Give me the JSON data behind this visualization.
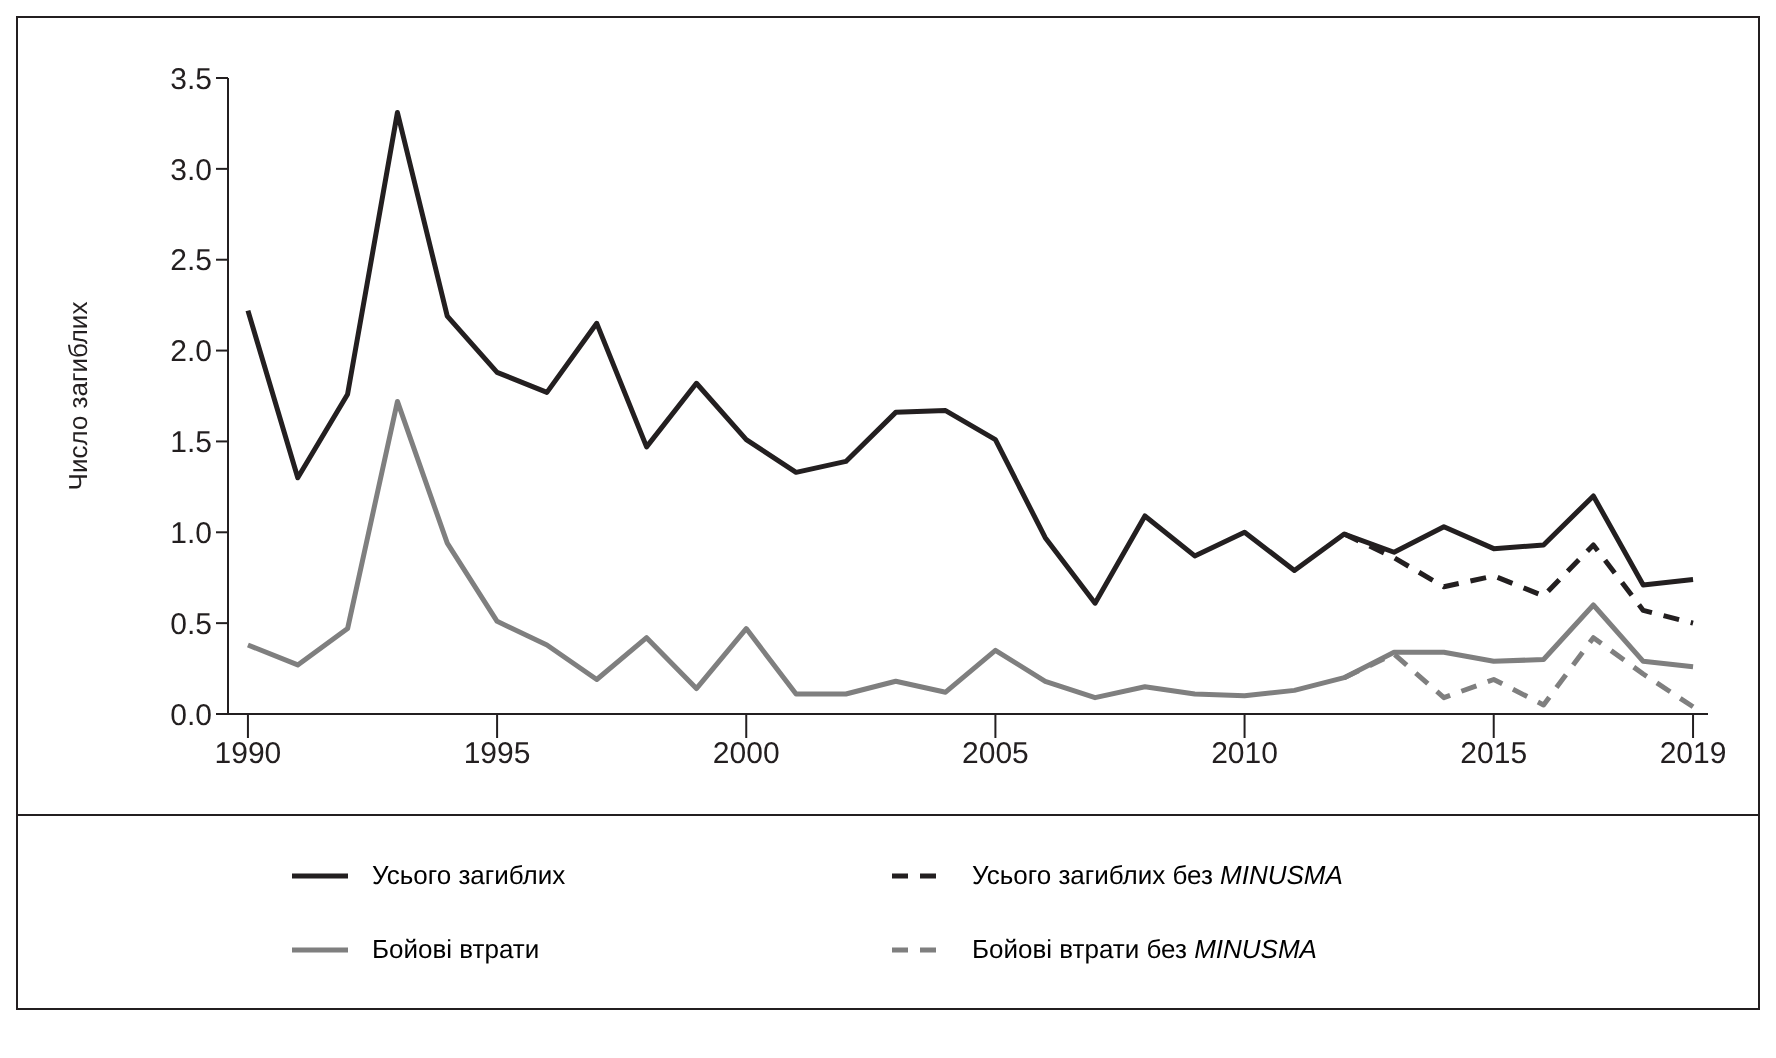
{
  "chart_data": {
    "type": "line",
    "ylabel": "Число загиблих",
    "x": [
      1990,
      1991,
      1992,
      1993,
      1994,
      1995,
      1996,
      1997,
      1998,
      1999,
      2000,
      2001,
      2002,
      2003,
      2004,
      2005,
      2006,
      2007,
      2008,
      2009,
      2010,
      2011,
      2012,
      2013,
      2014,
      2015,
      2016,
      2017,
      2018,
      2019
    ],
    "series": [
      {
        "name": "Усього загиблих",
        "color": "#231f20",
        "line_style": "solid",
        "values": [
          2.22,
          1.3,
          1.76,
          3.31,
          2.19,
          1.88,
          1.77,
          2.15,
          1.47,
          1.82,
          1.51,
          1.33,
          1.39,
          1.66,
          1.67,
          1.51,
          0.97,
          0.61,
          1.09,
          0.87,
          1.0,
          0.79,
          0.99,
          0.89,
          1.03,
          0.91,
          0.93,
          1.2,
          0.71,
          0.74
        ]
      },
      {
        "name": "Усього загиблих без MINUSMA",
        "color": "#231f20",
        "line_style": "dashed",
        "x": [
          2012,
          2013,
          2014,
          2015,
          2016,
          2017,
          2018,
          2019
        ],
        "values": [
          0.99,
          0.86,
          0.7,
          0.76,
          0.65,
          0.93,
          0.57,
          0.5
        ]
      },
      {
        "name": "Бойові втрати",
        "color": "#7f7f7f",
        "line_style": "solid",
        "values": [
          0.38,
          0.27,
          0.47,
          1.72,
          0.94,
          0.51,
          0.38,
          0.19,
          0.42,
          0.14,
          0.47,
          0.11,
          0.11,
          0.18,
          0.12,
          0.35,
          0.18,
          0.09,
          0.15,
          0.11,
          0.1,
          0.13,
          0.2,
          0.34,
          0.34,
          0.29,
          0.3,
          0.6,
          0.29,
          0.26
        ]
      },
      {
        "name": "Бойові втрати без MINUSMA",
        "color": "#7f7f7f",
        "line_style": "dashed",
        "x": [
          2012,
          2013,
          2014,
          2015,
          2016,
          2017,
          2018,
          2019
        ],
        "values": [
          0.2,
          0.33,
          0.09,
          0.19,
          0.05,
          0.42,
          0.22,
          0.04
        ]
      }
    ],
    "xlim": [
      1989.6,
      2019.3
    ],
    "xticks": [
      1990,
      1995,
      2000,
      2005,
      2010,
      2015,
      2019
    ],
    "ylim": [
      0,
      3.5
    ],
    "yticks": [
      {
        "value": 0,
        "label": "0.0"
      },
      {
        "value": 0.5,
        "label": "0.5"
      },
      {
        "value": 1,
        "label": "1.0"
      },
      {
        "value": 1.5,
        "label": "1.5"
      },
      {
        "value": 2,
        "label": "2.0"
      },
      {
        "value": 2.5,
        "label": "2.5"
      },
      {
        "value": 3,
        "label": "3.0"
      },
      {
        "value": 3.5,
        "label": "3.5"
      }
    ],
    "grid": false,
    "legend": "bottom",
    "marker": "none"
  }
}
